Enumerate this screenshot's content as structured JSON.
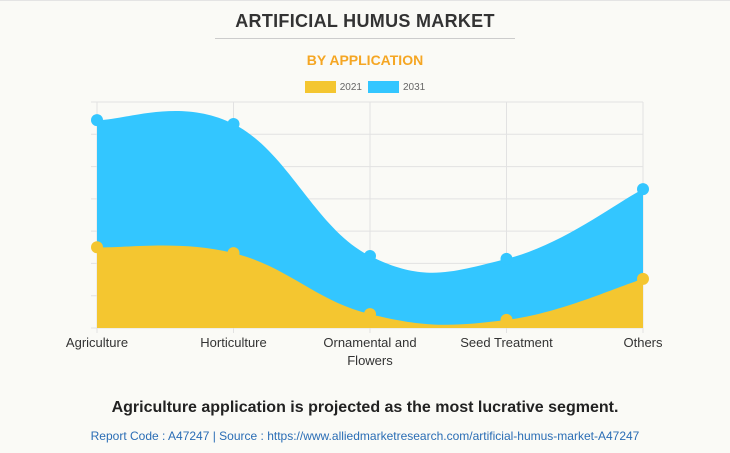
{
  "header": {
    "title": "ARTIFICIAL HUMUS MARKET",
    "subtitle": "BY APPLICATION"
  },
  "chart_data": {
    "type": "area",
    "title": "ARTIFICIAL HUMUS MARKET",
    "subtitle": "BY APPLICATION",
    "categories": [
      "Agriculture",
      "Horticulture",
      "Ornamental and Flowers",
      "Seed Treatment",
      "Others"
    ],
    "category_lines": [
      [
        "Agriculture"
      ],
      [
        "Horticulture"
      ],
      [
        "Ornamental and",
        "Flowers"
      ],
      [
        "Seed Treatment"
      ],
      [
        "Others"
      ]
    ],
    "series": [
      {
        "name": "2031",
        "color": "#33c6ff",
        "values": [
          6.44,
          6.32,
          2.23,
          2.14,
          4.3
        ]
      },
      {
        "name": "2021",
        "color": "#f4c630",
        "values": [
          2.5,
          2.32,
          0.43,
          0.25,
          1.52
        ]
      }
    ],
    "ylim": [
      0,
      7
    ],
    "grid": true,
    "legend": "top",
    "xlabel": "",
    "ylabel": ""
  },
  "legend": [
    {
      "label": "2021",
      "color": "#f4c630"
    },
    {
      "label": "2031",
      "color": "#33c6ff"
    }
  ],
  "footer": {
    "headline": "Agriculture application is projected as the most lucrative segment.",
    "report": "Report Code : A47247  |  Source : https://www.alliedmarketresearch.com/artificial-humus-market-A47247"
  }
}
